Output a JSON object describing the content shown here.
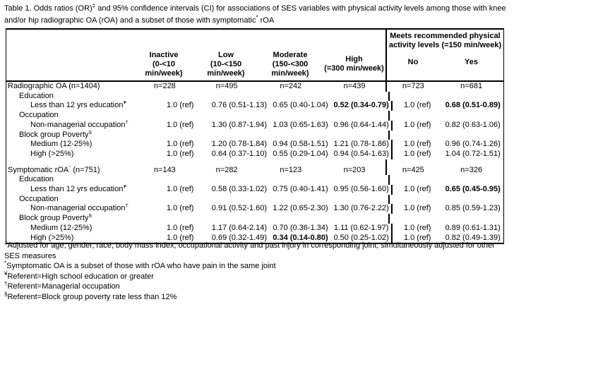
{
  "title": {
    "l1a": "Table 1. Odds ratios (OR)",
    "l1sup": "‡",
    "l1b": " and 95% confidence intervals (CI) for associations of SES variables with physical activity levels among those with knee",
    "l2a": "and/or hip radiographic OA (rOA) and a subset of those with symptomatic",
    "l2sup": "*",
    "l2b": " rOA"
  },
  "table": {
    "meets_header": "Meets recommended physical activity levels (=150 min/week)",
    "columns": [
      {
        "l1": "Inactive",
        "l2": "(0-<10",
        "l3": "min/week)"
      },
      {
        "l1": "Low",
        "l2": "(10-<150",
        "l3": "min/week)"
      },
      {
        "l1": "Moderate",
        "l2": "(150-<300",
        "l3": "min/week)"
      },
      {
        "l1": "High",
        "l2": "(=300 min/week)",
        "l3": ""
      }
    ],
    "no_label": "No",
    "yes_label": "Yes",
    "rows": [
      {
        "label": "Radiographic OA (n=1404)",
        "sup": "",
        "after": "",
        "indent": 0,
        "cells": [
          "n=228",
          "n=495",
          "n=242",
          "n=439",
          "n=723",
          "n=681"
        ]
      },
      {
        "label": "Education",
        "sup": "",
        "after": "",
        "indent": 1,
        "cells": [
          "",
          "",
          "",
          "",
          "",
          ""
        ]
      },
      {
        "label": "Less than 12 yrs education",
        "sup": "¥",
        "after": "",
        "indent": 2,
        "cells": [
          "1.0 (ref)",
          "0.76 (0.51-1.13)",
          "0.65 (0.40-1.04)",
          {
            "text": "0.52 (0.34-0.79)",
            "bold": true
          },
          "1.0 (ref)",
          {
            "text": "0.68 (0.51-0.89)",
            "bold": true
          }
        ]
      },
      {
        "label": "Occupation",
        "sup": "",
        "after": "",
        "indent": 1,
        "cells": [
          "",
          "",
          "",
          "",
          "",
          ""
        ]
      },
      {
        "label": "Non-managerial occupation",
        "sup": "†",
        "after": "",
        "indent": 2,
        "cells": [
          "1.0 (ref)",
          "1.30 (0.87-1.94)",
          "1.03 (0.65-1.63)",
          "0.96 (0.64-1.44)",
          "1.0 (ref)",
          "0.82 (0.63-1.06)"
        ]
      },
      {
        "label": "Block group Poverty",
        "sup": "§",
        "after": "",
        "indent": 1,
        "cells": [
          "",
          "",
          "",
          "",
          "",
          ""
        ]
      },
      {
        "label": "Medium (12-25%)",
        "sup": "",
        "after": "",
        "indent": 2,
        "cells": [
          "1.0 (ref)",
          "1.20 (0.78-1.84)",
          "0.94 (0.58-1.51)",
          "1.21 (0.78-1.86)",
          "1.0 (ref)",
          "0.96 (0.74-1.26)"
        ]
      },
      {
        "label": "High (>25%)",
        "sup": "",
        "after": "",
        "indent": 2,
        "cells": [
          "1.0 (ref)",
          "0.64 (0.37-1.10)",
          "0.55 (0.29-1.04)",
          "0.94 (0.54-1.63)",
          "1.0 (ref)",
          "1.04 (0.72-1.51)"
        ]
      },
      {
        "spacer": true
      },
      {
        "label": "Symptomatic rOA",
        "sup": "*",
        "after": " (n=751)",
        "indent": 0,
        "cells": [
          "n=143",
          "n=282",
          "n=123",
          "n=203",
          "n=425",
          "n=326"
        ]
      },
      {
        "label": "Education",
        "sup": "",
        "after": "",
        "indent": 1,
        "cells": [
          "",
          "",
          "",
          "",
          "",
          ""
        ]
      },
      {
        "label": "Less than 12 yrs education",
        "sup": "¥",
        "after": "",
        "indent": 2,
        "cells": [
          "1.0 (ref)",
          "0.58 (0.33-1.02)",
          "0.75 (0.40-1.41)",
          "0.95 (0.56-1.60)",
          "1.0 (ref)",
          {
            "text": "0.65 (0.45-0.95)",
            "bold": true
          }
        ]
      },
      {
        "label": "Occupation",
        "sup": "",
        "after": "",
        "indent": 1,
        "cells": [
          "",
          "",
          "",
          "",
          "",
          ""
        ]
      },
      {
        "label": "Non-managerial occupation",
        "sup": "†",
        "after": "",
        "indent": 2,
        "cells": [
          "1.0 (ref)",
          "0.91 (0.52-1.60)",
          "1.22 (0.65-2.30)",
          "1.30 (0.76-2.22)",
          "1.0 (ref)",
          "0.85 (0.59-1.23)"
        ]
      },
      {
        "label": "Block group Poverty",
        "sup": "§",
        "after": "",
        "indent": 1,
        "cells": [
          "",
          "",
          "",
          "",
          "",
          ""
        ]
      },
      {
        "label": "Medium (12-25%)",
        "sup": "",
        "after": "",
        "indent": 2,
        "cells": [
          "1.0 (ref)",
          "1.17 (0.64-2.14)",
          "0.70 (0.36-1.34)",
          "1.11 (0.62-1.97)",
          "1.0 (ref)",
          "0.89 (0.61-1.31)"
        ]
      },
      {
        "label": "High (>25%)",
        "sup": "",
        "after": "",
        "indent": 2,
        "cells": [
          "1.0 (ref)",
          "0.69 (0.32-1.49)",
          {
            "text": "0.34 (0.14-0.80)",
            "bold": true
          },
          "0.50 (0.25-1.02)",
          "1.0 (ref)",
          "0.82 (0.49-1.39)"
        ]
      }
    ]
  },
  "footnotes": [
    {
      "mark": "‡",
      "text": "Adjusted for age, gender, race, body mass index, occupational activity and past injury in corresponding joint; simultaneously adjusted for other SES measures"
    },
    {
      "mark": "*",
      "text": "Symptomatic OA is a subset of those with rOA who have pain in the same joint"
    },
    {
      "mark": "¥",
      "text": "Referent=High school education or greater"
    },
    {
      "mark": "†",
      "text": "Referent=Managerial occupation"
    },
    {
      "mark": "§",
      "text": "Referent=Block group poverty rate less than 12%"
    }
  ]
}
